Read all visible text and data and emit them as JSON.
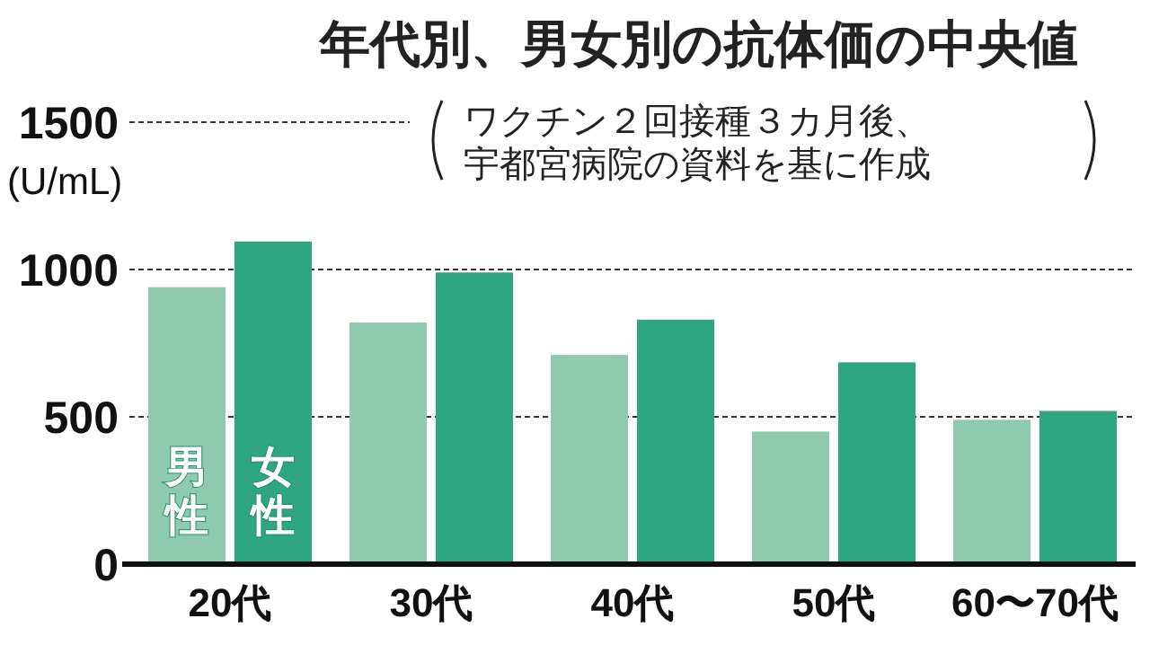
{
  "chart_data": {
    "type": "bar",
    "title": "年代別、男女別の抗体価の中央値",
    "ylabel": "(U/mL)",
    "annotations": [
      "ワクチン２回接種３カ月後、宇都宮病院の資料を基に作成"
    ],
    "categories": [
      "20代",
      "30代",
      "40代",
      "50代",
      "60〜70代"
    ],
    "series": [
      {
        "name": "男性",
        "color": "#8ecab0",
        "values": [
          940,
          820,
          710,
          450,
          490
        ]
      },
      {
        "name": "女性",
        "color": "#2ea682",
        "values": [
          1095,
          990,
          830,
          685,
          520
        ]
      }
    ],
    "ylim": [
      0,
      1500
    ],
    "yticks": [
      0,
      500,
      1000,
      1500
    ],
    "grid": "y"
  }
}
